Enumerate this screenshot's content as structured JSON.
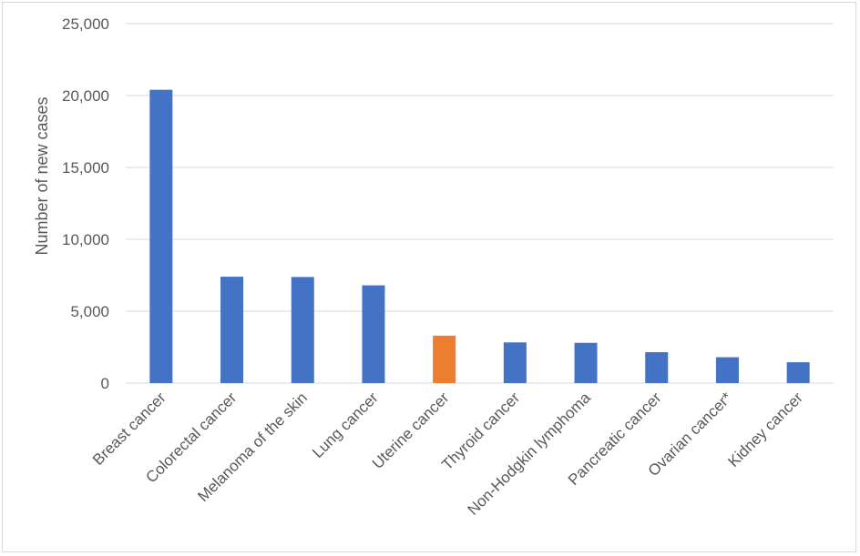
{
  "chart_data": {
    "type": "bar",
    "title": "",
    "xlabel": "",
    "ylabel": "Number of new cases",
    "ylim": [
      0,
      25000
    ],
    "yticks": [
      0,
      5000,
      10000,
      15000,
      20000,
      25000
    ],
    "ytick_labels": [
      "0",
      "5,000",
      "10,000",
      "15,000",
      "20,000",
      "25,000"
    ],
    "grid": true,
    "legend": "none",
    "categories": [
      "Breast cancer",
      "Colorectal cancer",
      "Melanoma of the skin",
      "Lung cancer",
      "Uterine cancer",
      "Thyroid cancer",
      "Non-Hodgkin lymphoma",
      "Pancreatic cancer",
      "Ovarian cancer*",
      "Kidney cancer"
    ],
    "values": [
      20400,
      7400,
      7380,
      6800,
      3300,
      2830,
      2800,
      2150,
      1800,
      1450
    ],
    "bar_colors": [
      "#4472c4",
      "#4472c4",
      "#4472c4",
      "#4472c4",
      "#ed7d31",
      "#4472c4",
      "#4472c4",
      "#4472c4",
      "#4472c4",
      "#4472c4"
    ],
    "gridline_color": "#d9d9d9",
    "axis_color": "#d9d9d9"
  }
}
